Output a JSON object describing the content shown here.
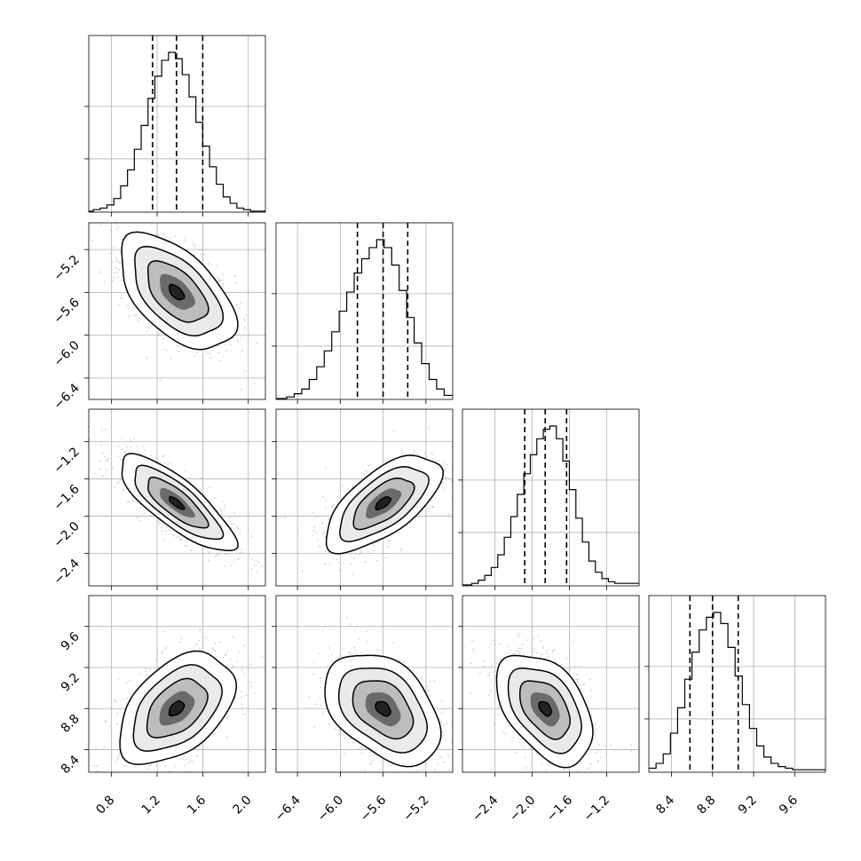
{
  "chart_data": {
    "type": "corner",
    "title": "",
    "parameters": [
      {
        "range": [
          0.6,
          2.15
        ],
        "ticks": [
          "0.8",
          "1.2",
          "1.6",
          "2.0"
        ],
        "quantiles": [
          1.16,
          1.37,
          1.6
        ],
        "hist_bins": [
          [
            0.6,
            0.64,
            0
          ],
          [
            0.64,
            0.7,
            0.01
          ],
          [
            0.7,
            0.76,
            0.02
          ],
          [
            0.76,
            0.82,
            0.04
          ],
          [
            0.82,
            0.88,
            0.08
          ],
          [
            0.88,
            0.94,
            0.16
          ],
          [
            0.94,
            1.0,
            0.26
          ],
          [
            1.0,
            1.06,
            0.39
          ],
          [
            1.06,
            1.12,
            0.54
          ],
          [
            1.12,
            1.18,
            0.71
          ],
          [
            1.18,
            1.24,
            0.85
          ],
          [
            1.24,
            1.3,
            0.95
          ],
          [
            1.3,
            1.36,
            1.0
          ],
          [
            1.36,
            1.42,
            0.96
          ],
          [
            1.42,
            1.48,
            0.86
          ],
          [
            1.48,
            1.54,
            0.72
          ],
          [
            1.54,
            1.6,
            0.56
          ],
          [
            1.6,
            1.66,
            0.41
          ],
          [
            1.66,
            1.72,
            0.28
          ],
          [
            1.72,
            1.78,
            0.17
          ],
          [
            1.78,
            1.84,
            0.09
          ],
          [
            1.84,
            1.9,
            0.05
          ],
          [
            1.9,
            1.96,
            0.02
          ],
          [
            1.96,
            2.02,
            0.01
          ],
          [
            2.02,
            2.15,
            0
          ]
        ]
      },
      {
        "range": [
          -6.6,
          -4.95
        ],
        "ticks": [
          "−6.4",
          "−6.0",
          "−5.6",
          "−5.2"
        ],
        "quantiles": [
          -5.84,
          -5.6,
          -5.37
        ],
        "hist_bins": [
          [
            -6.6,
            -6.5,
            0
          ],
          [
            -6.5,
            -6.43,
            0.01
          ],
          [
            -6.43,
            -6.36,
            0.03
          ],
          [
            -6.36,
            -6.29,
            0.06
          ],
          [
            -6.29,
            -6.22,
            0.12
          ],
          [
            -6.22,
            -6.15,
            0.2
          ],
          [
            -6.15,
            -6.08,
            0.3
          ],
          [
            -6.08,
            -6.01,
            0.42
          ],
          [
            -6.01,
            -5.94,
            0.55
          ],
          [
            -5.94,
            -5.87,
            0.67
          ],
          [
            -5.87,
            -5.8,
            0.79
          ],
          [
            -5.8,
            -5.73,
            0.88
          ],
          [
            -5.73,
            -5.66,
            0.95
          ],
          [
            -5.66,
            -5.59,
            1.0
          ],
          [
            -5.59,
            -5.52,
            0.95
          ],
          [
            -5.52,
            -5.45,
            0.84
          ],
          [
            -5.45,
            -5.38,
            0.68
          ],
          [
            -5.38,
            -5.31,
            0.51
          ],
          [
            -5.31,
            -5.24,
            0.35
          ],
          [
            -5.24,
            -5.17,
            0.22
          ],
          [
            -5.17,
            -5.1,
            0.12
          ],
          [
            -5.1,
            -5.03,
            0.06
          ],
          [
            -5.03,
            -4.95,
            0.02
          ]
        ]
      },
      {
        "range": [
          -2.75,
          -0.85
        ],
        "ticks": [
          "−2.4",
          "−2.0",
          "−1.6",
          "−1.2"
        ],
        "quantiles": [
          -2.08,
          -1.86,
          -1.63
        ],
        "hist_bins": [
          [
            -2.75,
            -2.65,
            0
          ],
          [
            -2.65,
            -2.58,
            0.01
          ],
          [
            -2.58,
            -2.51,
            0.03
          ],
          [
            -2.51,
            -2.44,
            0.06
          ],
          [
            -2.44,
            -2.37,
            0.11
          ],
          [
            -2.37,
            -2.3,
            0.19
          ],
          [
            -2.3,
            -2.23,
            0.3
          ],
          [
            -2.23,
            -2.16,
            0.43
          ],
          [
            -2.16,
            -2.09,
            0.57
          ],
          [
            -2.09,
            -2.02,
            0.7
          ],
          [
            -2.02,
            -1.95,
            0.82
          ],
          [
            -1.95,
            -1.88,
            0.92
          ],
          [
            -1.88,
            -1.81,
            0.98
          ],
          [
            -1.81,
            -1.74,
            1.0
          ],
          [
            -1.74,
            -1.67,
            0.92
          ],
          [
            -1.67,
            -1.6,
            0.78
          ],
          [
            -1.6,
            -1.53,
            0.6
          ],
          [
            -1.53,
            -1.46,
            0.42
          ],
          [
            -1.46,
            -1.39,
            0.27
          ],
          [
            -1.39,
            -1.32,
            0.15
          ],
          [
            -1.32,
            -1.25,
            0.08
          ],
          [
            -1.25,
            -1.18,
            0.04
          ],
          [
            -1.18,
            -1.11,
            0.02
          ],
          [
            -1.11,
            -0.85,
            0.01
          ]
        ]
      },
      {
        "range": [
          8.18,
          9.9
        ],
        "ticks": [
          "8.4",
          "8.8",
          "9.2",
          "9.6"
        ],
        "quantiles": [
          8.58,
          8.8,
          9.05
        ],
        "hist_bins": [
          [
            8.18,
            8.25,
            0.02
          ],
          [
            8.25,
            8.32,
            0.05
          ],
          [
            8.32,
            8.39,
            0.11
          ],
          [
            8.39,
            8.46,
            0.24
          ],
          [
            8.46,
            8.53,
            0.4
          ],
          [
            8.53,
            8.6,
            0.58
          ],
          [
            8.6,
            8.67,
            0.75
          ],
          [
            8.67,
            8.74,
            0.89
          ],
          [
            8.74,
            8.81,
            0.97
          ],
          [
            8.81,
            8.88,
            1.0
          ],
          [
            8.88,
            8.95,
            0.93
          ],
          [
            8.95,
            9.02,
            0.78
          ],
          [
            9.02,
            9.09,
            0.6
          ],
          [
            9.09,
            9.16,
            0.42
          ],
          [
            9.16,
            9.23,
            0.27
          ],
          [
            9.23,
            9.3,
            0.16
          ],
          [
            9.3,
            9.37,
            0.09
          ],
          [
            9.37,
            9.44,
            0.05
          ],
          [
            9.44,
            9.51,
            0.03
          ],
          [
            9.51,
            9.58,
            0.02
          ],
          [
            9.58,
            9.9,
            0.01
          ]
        ]
      }
    ],
    "correlations": {
      "1_0": -0.55,
      "2_0": -0.8,
      "2_1": 0.65,
      "3_0": 0.45,
      "3_1": -0.4,
      "3_2": -0.45
    },
    "grid": true,
    "colors": {
      "line": "#000000",
      "scatter": "#bdbdbd",
      "grid": "#b0b0b0"
    }
  }
}
